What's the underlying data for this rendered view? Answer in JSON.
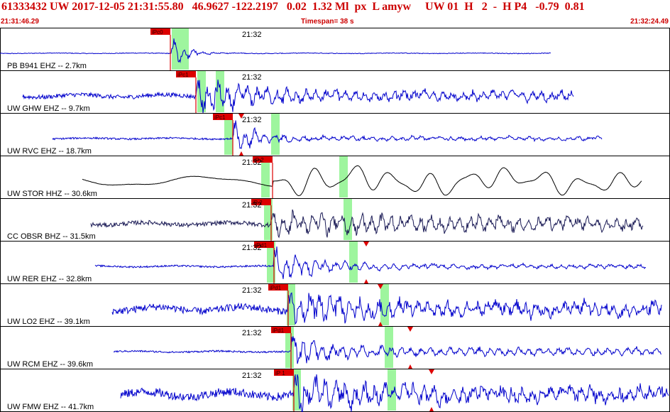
{
  "header": {
    "title": "61333432 UW 2017-12-05 21:31:55.80   46.9627 -122.2197   0.02  1.32 Ml  px  L amyw     UW 01  H   2  -  H P4   -0.79  0.81",
    "start_time": "21:31:46.29",
    "timespan": "Timespan=  38 s",
    "end_time": "21:32:24.49"
  },
  "colors": {
    "header_text": "#cc0000",
    "trace_blue": "#0000cc",
    "trace_black": "#000000",
    "trace_navy": "#1a1a55",
    "window_green": "#9ef59e",
    "pick_red": "#dd0000",
    "border": "#000000"
  },
  "traces": [
    {
      "label": "PB B941 EHZ -- 2.7km",
      "time_label": "21:32",
      "pick_label": "iPc0",
      "color": "blue",
      "start": 0,
      "end": 776,
      "onset": 242,
      "noise": 0.5,
      "signal": 24,
      "decay": 0.045,
      "wave": "spiky",
      "tail": 0.0,
      "green": [
        242,
        264
      ],
      "pick": 240,
      "extra_picks": []
    },
    {
      "label": "UW GHW EHZ -- 9.7km",
      "time_label": "21:32",
      "pick_label": "iPc1",
      "color": "blue",
      "start": 32,
      "end": 808,
      "onset": 276,
      "noise": 3,
      "signal": 22,
      "decay": 0.012,
      "wave": "spiky",
      "tail": 7,
      "green": [
        278,
        314
      ],
      "pick": 276,
      "extra_picks": []
    },
    {
      "label": "UW RVC EHZ -- 18.7km",
      "time_label": "21:32",
      "pick_label": "iPc1",
      "color": "blue",
      "start": 74,
      "end": 848,
      "onset": 328,
      "noise": 1.2,
      "signal": 26,
      "decay": 0.03,
      "wave": "spiky",
      "tail": 3,
      "green": [
        316,
        392
      ],
      "pick": 328,
      "extra_picks": [
        340
      ]
    },
    {
      "label": "UW STOR HHZ -- 30.6km",
      "time_label": "21:32",
      "pick_label": "iP 2",
      "color": "black",
      "start": 116,
      "end": 904,
      "onset": 384,
      "noise": 0.4,
      "signal": 10,
      "decay": 0.002,
      "wave": "slow",
      "tail": 10,
      "green": [
        368,
        488
      ],
      "pick": 384,
      "extra_picks": []
    },
    {
      "label": "CC OBSR BHZ -- 31.5km",
      "time_label": "21:32",
      "pick_label": "iP 2",
      "color": "navy",
      "start": 128,
      "end": 906,
      "onset": 382,
      "noise": 3,
      "signal": 13,
      "decay": 0.004,
      "wave": "spiky",
      "tail": 8,
      "green": [
        372,
        494
      ],
      "pick": 382,
      "extra_picks": []
    },
    {
      "label": "UW RER EHZ -- 32.8km",
      "time_label": "21:32",
      "pick_label": "iPd1",
      "color": "blue",
      "start": 134,
      "end": 910,
      "onset": 386,
      "noise": 1.2,
      "signal": 26,
      "decay": 0.018,
      "wave": "spiky",
      "tail": 3,
      "green": [
        376,
        502
      ],
      "pick": 386,
      "extra_picks": [
        516
      ]
    },
    {
      "label": "UW LO2 EHZ -- 39.1km",
      "time_label": "21:32",
      "pick_label": "iPd1",
      "color": "blue",
      "start": 158,
      "end": 932,
      "onset": 406,
      "noise": 5,
      "signal": 24,
      "decay": 0.012,
      "wave": "spiky",
      "tail": 9,
      "green": [
        404,
        546
      ],
      "pick": 406,
      "extra_picks": [
        536
      ]
    },
    {
      "label": "UW RCM EHZ -- 39.6km",
      "time_label": "21:32",
      "pick_label": "iPd1",
      "color": "blue",
      "start": 160,
      "end": 932,
      "onset": 410,
      "noise": 1.2,
      "signal": 24,
      "decay": 0.018,
      "wave": "spiky",
      "tail": 6,
      "green": [
        402,
        552
      ],
      "pick": 410,
      "extra_picks": [
        578
      ]
    },
    {
      "label": "UW FMW EHZ -- 41.7km",
      "time_label": "21:32",
      "pick_label": "iP 1",
      "color": "blue",
      "start": 170,
      "end": 942,
      "onset": 414,
      "noise": 6,
      "signal": 26,
      "decay": 0.012,
      "wave": "spiky",
      "tail": 10,
      "green": [
        412,
        556
      ],
      "pick": 414,
      "extra_picks": [
        608
      ]
    }
  ]
}
